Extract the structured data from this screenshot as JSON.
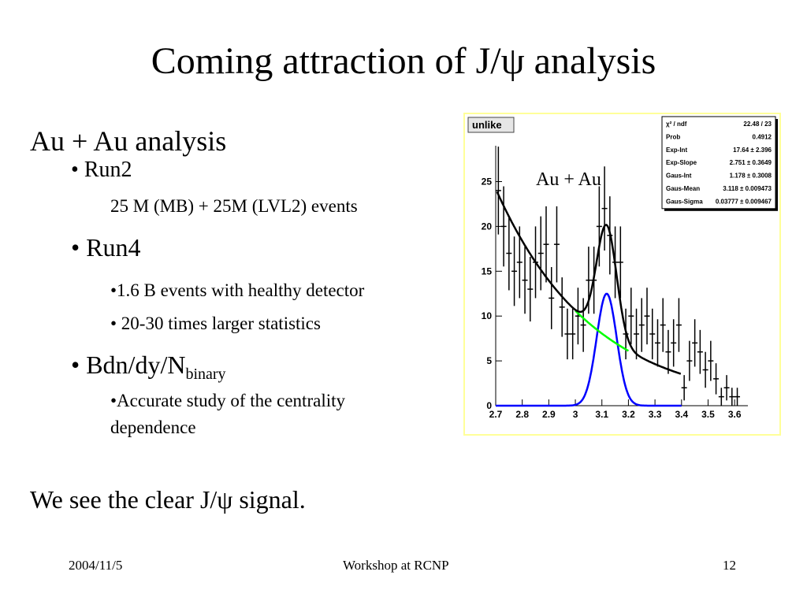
{
  "slide": {
    "title": "Coming attraction of J/ψ analysis",
    "heading": "Au + Au analysis",
    "run2": {
      "label": "Run2",
      "detail": "25 M (MB) + 25M (LVL2) events"
    },
    "run4": {
      "label": "Run4",
      "items": [
        "•1.6 B events with healthy detector",
        "• 20-30 times larger  statistics"
      ]
    },
    "bdndy": {
      "label": "Bdn/dy/N",
      "subscript": "binary",
      "items": [
        "•Accurate study of the centrality",
        "dependence"
      ]
    },
    "conclusion": "We see the clear J/ψ signal."
  },
  "footer": {
    "date": "2004/11/5",
    "center": "Workshop at RCNP",
    "page": "12"
  },
  "chart_data": {
    "type": "scatter",
    "histogram_label": "unlike",
    "annotation": "Au + Au",
    "xlim": [
      2.7,
      3.65
    ],
    "ylim": [
      0,
      29
    ],
    "x_ticks": [
      "2.7",
      "2.8",
      "2.9",
      "3",
      "3.1",
      "3.2",
      "3.3",
      "3.4",
      "3.5",
      "3.6"
    ],
    "y_ticks": [
      "0",
      "5",
      "10",
      "15",
      "20",
      "25"
    ],
    "stats": [
      {
        "name": "χ² / ndf",
        "value": "22.48 / 23"
      },
      {
        "name": "Prob",
        "value": "0.4912"
      },
      {
        "name": "Exp-Int",
        "value": "17.64 ± 2.396"
      },
      {
        "name": "Exp-Slope",
        "value": "2.751 ± 0.3649"
      },
      {
        "name": "Gaus-Int",
        "value": "1.178 ± 0.3008"
      },
      {
        "name": "Gaus-Mean",
        "value": "3.118 ± 0.009473"
      },
      {
        "name": "Gaus-Sigma",
        "value": "0.03777 ± 0.009467"
      }
    ],
    "points": [
      {
        "x": 2.71,
        "y": 24
      },
      {
        "x": 2.73,
        "y": 20
      },
      {
        "x": 2.75,
        "y": 17
      },
      {
        "x": 2.77,
        "y": 15
      },
      {
        "x": 2.79,
        "y": 16
      },
      {
        "x": 2.81,
        "y": 14
      },
      {
        "x": 2.83,
        "y": 13
      },
      {
        "x": 2.85,
        "y": 16
      },
      {
        "x": 2.87,
        "y": 17
      },
      {
        "x": 2.89,
        "y": 18
      },
      {
        "x": 2.91,
        "y": 12
      },
      {
        "x": 2.93,
        "y": 18
      },
      {
        "x": 2.95,
        "y": 11
      },
      {
        "x": 2.97,
        "y": 8
      },
      {
        "x": 2.99,
        "y": 8
      },
      {
        "x": 3.01,
        "y": 10
      },
      {
        "x": 3.03,
        "y": 9
      },
      {
        "x": 3.05,
        "y": 14
      },
      {
        "x": 3.07,
        "y": 14
      },
      {
        "x": 3.09,
        "y": 20
      },
      {
        "x": 3.11,
        "y": 22
      },
      {
        "x": 3.13,
        "y": 19
      },
      {
        "x": 3.15,
        "y": 16
      },
      {
        "x": 3.17,
        "y": 16
      },
      {
        "x": 3.19,
        "y": 8
      },
      {
        "x": 3.21,
        "y": 10
      },
      {
        "x": 3.23,
        "y": 8
      },
      {
        "x": 3.25,
        "y": 9
      },
      {
        "x": 3.27,
        "y": 10
      },
      {
        "x": 3.29,
        "y": 8
      },
      {
        "x": 3.31,
        "y": 7
      },
      {
        "x": 3.33,
        "y": 9
      },
      {
        "x": 3.35,
        "y": 6
      },
      {
        "x": 3.37,
        "y": 7
      },
      {
        "x": 3.39,
        "y": 9
      },
      {
        "x": 3.41,
        "y": 2
      },
      {
        "x": 3.43,
        "y": 5
      },
      {
        "x": 3.45,
        "y": 7
      },
      {
        "x": 3.47,
        "y": 6
      },
      {
        "x": 3.49,
        "y": 4
      },
      {
        "x": 3.51,
        "y": 5
      },
      {
        "x": 3.53,
        "y": 3
      },
      {
        "x": 3.55,
        "y": 1
      },
      {
        "x": 3.57,
        "y": 2
      },
      {
        "x": 3.59,
        "y": 1
      },
      {
        "x": 3.61,
        "y": 1
      }
    ],
    "colors": {
      "total_fit": "#000000",
      "signal": "#0000ff",
      "background_under_peak": "#00ff00",
      "frame_border": "#ffff99"
    }
  }
}
